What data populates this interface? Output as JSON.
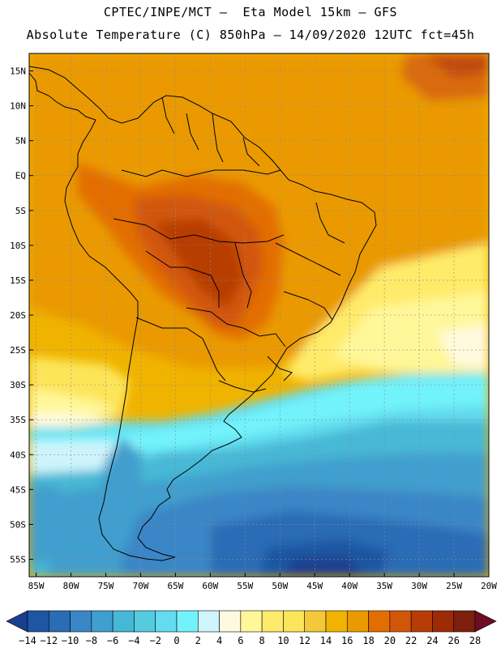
{
  "header": {
    "line1": "CPTEC/INPE/MCT –  Eta Model 15km – GFS",
    "line2": "Absolute Temperature (C) 850hPa – 14/09/2020 12UTC fct=45h"
  },
  "map": {
    "lat_labels": [
      "15N",
      "10N",
      "5N",
      "EQ",
      "5S",
      "10S",
      "15S",
      "20S",
      "25S",
      "30S",
      "35S",
      "40S",
      "45S",
      "50S",
      "55S"
    ],
    "lon_labels": [
      "85W",
      "80W",
      "75W",
      "70W",
      "65W",
      "60W",
      "55W",
      "50W",
      "45W",
      "40W",
      "35W",
      "30W",
      "25W",
      "20W"
    ],
    "lat_range": [
      17.5,
      -57.5
    ],
    "lon_range": [
      -86,
      -20
    ]
  },
  "legend": {
    "labels": [
      "-14",
      "-12",
      "-10",
      "-8",
      "-6",
      "-4",
      "-2",
      "0",
      "2",
      "4",
      "6",
      "8",
      "10",
      "12",
      "14",
      "16",
      "18",
      "20",
      "22",
      "24",
      "26",
      "28"
    ],
    "colors": [
      "#1a3f8f",
      "#1f56a3",
      "#2a6cb5",
      "#3a86c6",
      "#3f9fce",
      "#46b8d6",
      "#55cbe0",
      "#62dcee",
      "#72f3fb",
      "#cff4fb",
      "#fffadf",
      "#fff79a",
      "#ffeb6b",
      "#fde55a",
      "#f4c83a",
      "#f0b300",
      "#ea9a00",
      "#e36e00",
      "#d2560a",
      "#b73d06",
      "#9d2b06",
      "#7d1e0f",
      "#6c0d23"
    ]
  }
}
